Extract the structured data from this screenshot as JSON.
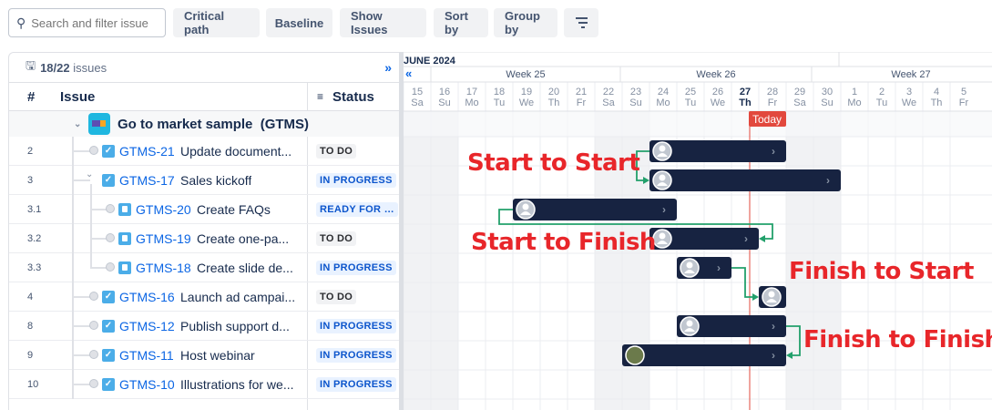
{
  "toolbar": {
    "search_placeholder": "Search and filter issue",
    "buttons": [
      "Critical path",
      "Baseline",
      "Show Issues",
      "Sort by",
      "Group by"
    ],
    "filter_icon": "filter-lines-icon"
  },
  "panel": {
    "count": "18/22",
    "count_suffix": "issues",
    "expand_icon": "double-chevron-right"
  },
  "columns": {
    "num": "#",
    "issue": "Issue",
    "status": "Status"
  },
  "group": {
    "name": "Go to market sample  (GTMS)"
  },
  "rows": [
    {
      "num": "2",
      "key": "GTMS-21",
      "summary": "Update document...",
      "status": "TO DO",
      "type": "task",
      "level": 1,
      "start": 24,
      "end": 28
    },
    {
      "num": "3",
      "key": "GTMS-17",
      "summary": "Sales kickoff",
      "status": "IN PROGRESS",
      "type": "task",
      "level": 1,
      "expanded": true,
      "start": 24,
      "end": 30
    },
    {
      "num": "3.1",
      "key": "GTMS-20",
      "summary": "Create FAQs",
      "status": "READY FOR L...",
      "type": "subtask",
      "level": 2,
      "start": 19,
      "end": 24
    },
    {
      "num": "3.2",
      "key": "GTMS-19",
      "summary": "Create one-pa...",
      "status": "TO DO",
      "type": "subtask",
      "level": 2,
      "start": 24,
      "end": 27
    },
    {
      "num": "3.3",
      "key": "GTMS-18",
      "summary": "Create slide de...",
      "status": "IN PROGRESS",
      "type": "subtask",
      "level": 2,
      "start": 25,
      "end": 26
    },
    {
      "num": "4",
      "key": "GTMS-16",
      "summary": "Launch ad campai...",
      "status": "TO DO",
      "type": "task",
      "level": 1,
      "start": 28,
      "end": 28
    },
    {
      "num": "8",
      "key": "GTMS-12",
      "summary": "Publish support d...",
      "status": "IN PROGRESS",
      "type": "task",
      "level": 1,
      "start": 25,
      "end": 28
    },
    {
      "num": "9",
      "key": "GTMS-11",
      "summary": "Host webinar",
      "status": "IN PROGRESS",
      "type": "task",
      "level": 1,
      "start": 23,
      "end": 28,
      "photo_avatar": true
    },
    {
      "num": "10",
      "key": "GTMS-10",
      "summary": "Illustrations for we...",
      "status": "IN PROGRESS",
      "type": "task",
      "level": 1
    }
  ],
  "timeline": {
    "month": "JUNE 2024",
    "weeks": [
      "Week 25",
      "Week 26",
      "Week 27"
    ],
    "days": [
      [
        "15",
        "Sa"
      ],
      [
        "16",
        "Su"
      ],
      [
        "17",
        "Mo"
      ],
      [
        "18",
        "Tu"
      ],
      [
        "19",
        "We"
      ],
      [
        "20",
        "Th"
      ],
      [
        "21",
        "Fr"
      ],
      [
        "22",
        "Sa"
      ],
      [
        "23",
        "Su"
      ],
      [
        "24",
        "Mo"
      ],
      [
        "25",
        "Tu"
      ],
      [
        "26",
        "We"
      ],
      [
        "27",
        "Th"
      ],
      [
        "28",
        "Fr"
      ],
      [
        "29",
        "Sa"
      ],
      [
        "30",
        "Su"
      ],
      [
        "1",
        "Mo"
      ],
      [
        "2",
        "Tu"
      ],
      [
        "3",
        "We"
      ],
      [
        "4",
        "Th"
      ],
      [
        "5",
        "Fr"
      ]
    ],
    "today": "Today",
    "today_day": "27"
  },
  "dependencies": [
    {
      "from": "GTMS-21",
      "to": "GTMS-17",
      "type": "start-to-start"
    },
    {
      "from": "GTMS-20",
      "to": "GTMS-19",
      "type": "start-to-finish"
    },
    {
      "from": "GTMS-18",
      "to": "GTMS-16",
      "type": "finish-to-start"
    },
    {
      "from": "GTMS-12",
      "to": "GTMS-11",
      "type": "finish-to-finish"
    }
  ],
  "annotations": [
    "Start to Start",
    "Start to Finish",
    "Finish to Start",
    "Finish to Finish"
  ],
  "colors": {
    "bar": "#172341",
    "dependency": "#22a06b",
    "today": "#e2483d",
    "annotation": "#e8262a",
    "link": "#0c66e4"
  }
}
